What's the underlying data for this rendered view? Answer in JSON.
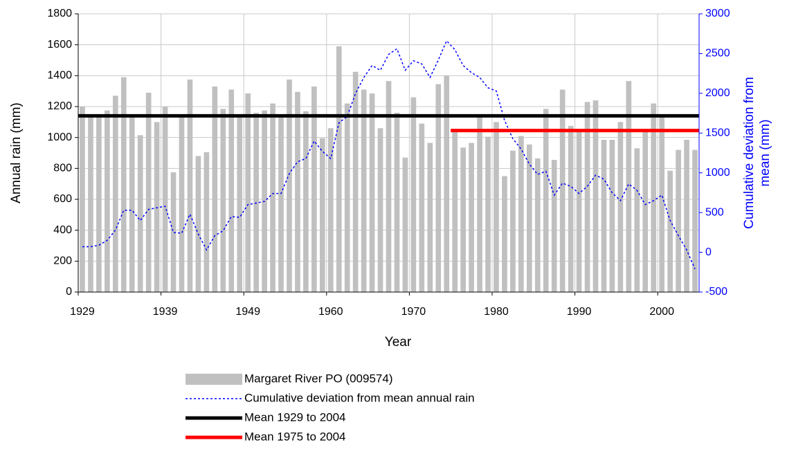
{
  "chart_data": {
    "type": "bar",
    "xlabel": "Year",
    "ylabel": "Annual rain (mm)",
    "y2label": [
      "Cumulative deviation from",
      "mean (mm)"
    ],
    "categories": [
      "1929",
      null,
      null,
      null,
      null,
      null,
      null,
      null,
      null,
      null,
      "1939",
      null,
      null,
      null,
      null,
      null,
      null,
      null,
      null,
      null,
      "1949",
      null,
      null,
      null,
      null,
      null,
      null,
      null,
      null,
      null,
      "1960",
      null,
      null,
      null,
      null,
      null,
      null,
      null,
      null,
      null,
      "1970",
      null,
      null,
      null,
      null,
      null,
      null,
      null,
      null,
      null,
      "1980",
      null,
      null,
      null,
      null,
      null,
      null,
      null,
      null,
      null,
      "1990",
      null,
      null,
      null,
      null,
      null,
      null,
      null,
      null,
      null,
      "2000",
      null,
      null,
      null,
      null
    ],
    "ylim": [
      0,
      1800
    ],
    "yticks": [
      0,
      200,
      400,
      600,
      800,
      1000,
      1200,
      1400,
      1600,
      1800
    ],
    "y2lim": [
      -500,
      3000
    ],
    "y2ticks": [
      -500,
      0,
      500,
      1000,
      1500,
      2000,
      2500,
      3000
    ],
    "grid": true,
    "series": [
      {
        "name": "Margaret River PO (009574)",
        "type": "bar",
        "color": "#c0c0c0",
        "values": [
          1200,
          1140,
          1150,
          1175,
          1270,
          1390,
          1140,
          1015,
          1290,
          1100,
          1200,
          775,
          1130,
          1375,
          880,
          905,
          1330,
          1185,
          1310,
          1140,
          1285,
          1160,
          1175,
          1220,
          1145,
          1375,
          1295,
          1170,
          1330,
          995,
          1060,
          1590,
          1220,
          1425,
          1310,
          1285,
          1060,
          1365,
          1160,
          870,
          1260,
          1090,
          965,
          1345,
          1400,
          1050,
          935,
          965,
          1140,
          1005,
          1100,
          750,
          915,
          1010,
          955,
          865,
          1185,
          855,
          1310,
          1075,
          1050,
          1230,
          1240,
          985,
          985,
          1100,
          1365,
          930,
          1040,
          1220,
          1140,
          785,
          920,
          985,
          920
        ]
      },
      {
        "name": "Cumulative deviation from mean annual rain",
        "type": "dash",
        "axis": "y2",
        "color": "#0000ff",
        "values": [
          70,
          70,
          90,
          150,
          280,
          530,
          530,
          400,
          540,
          560,
          580,
          250,
          240,
          480,
          230,
          30,
          210,
          270,
          450,
          440,
          600,
          620,
          640,
          740,
          740,
          990,
          1140,
          1180,
          1400,
          1270,
          1180,
          1630,
          1710,
          2000,
          2200,
          2350,
          2290,
          2490,
          2560,
          2290,
          2410,
          2370,
          2200,
          2420,
          2660,
          2550,
          2350,
          2260,
          2200,
          2070,
          2030,
          1660,
          1430,
          1300,
          1110,
          980,
          1020,
          720,
          870,
          830,
          740,
          830,
          970,
          920,
          750,
          650,
          860,
          780,
          600,
          650,
          720,
          400,
          210,
          30,
          -210
        ]
      },
      {
        "name": "Mean 1929 to 2004",
        "type": "thick",
        "color": "#000000",
        "values": [
          1140,
          1140,
          1140,
          1140,
          1140,
          1140,
          1140,
          1140,
          1140,
          1140,
          1140,
          1140,
          1140,
          1140,
          1140,
          1140,
          1140,
          1140,
          1140,
          1140,
          1140,
          1140,
          1140,
          1140,
          1140,
          1140,
          1140,
          1140,
          1140,
          1140,
          1140,
          1140,
          1140,
          1140,
          1140,
          1140,
          1140,
          1140,
          1140,
          1140,
          1140,
          1140,
          1140,
          1140,
          1140,
          1140,
          1140,
          1140,
          1140,
          1140,
          1140,
          1140,
          1140,
          1140,
          1140,
          1140,
          1140,
          1140,
          1140,
          1140,
          1140,
          1140,
          1140,
          1140,
          1140,
          1140,
          1140,
          1140,
          1140,
          1140,
          1140,
          1140,
          1140,
          1140,
          1140
        ]
      },
      {
        "name": "Mean 1975 to 2004",
        "type": "thick",
        "color": "#ff0000",
        "values": [
          null,
          null,
          null,
          null,
          null,
          null,
          null,
          null,
          null,
          null,
          null,
          null,
          null,
          null,
          null,
          null,
          null,
          null,
          null,
          null,
          null,
          null,
          null,
          null,
          null,
          null,
          null,
          null,
          null,
          null,
          null,
          null,
          null,
          null,
          null,
          null,
          null,
          null,
          null,
          null,
          null,
          null,
          null,
          null,
          null,
          1045,
          1045,
          1045,
          1045,
          1045,
          1045,
          1045,
          1045,
          1045,
          1045,
          1045,
          1045,
          1045,
          1045,
          1045,
          1045,
          1045,
          1045,
          1045,
          1045,
          1045,
          1045,
          1045,
          1045,
          1045,
          1045,
          1045,
          1045,
          1045,
          1045
        ]
      }
    ]
  }
}
